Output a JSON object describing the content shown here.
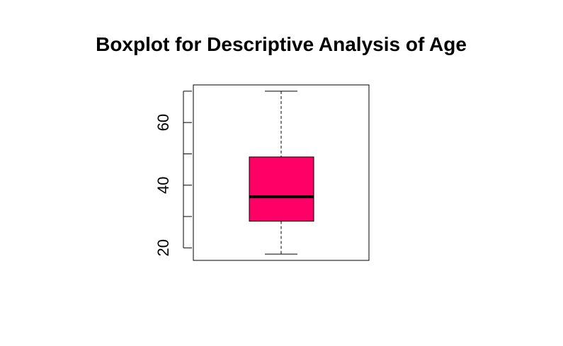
{
  "chart_data": {
    "type": "boxplot",
    "title": "Boxplot for Descriptive Analysis of Age",
    "xlabel": "",
    "ylabel": "",
    "ylim": [
      16,
      72
    ],
    "y_ticks": [
      20,
      30,
      40,
      50,
      60,
      70
    ],
    "y_tick_labels": [
      "20",
      "40",
      "60"
    ],
    "box": {
      "min": 18,
      "q1": 28.5,
      "median": 36.3,
      "q3": 49,
      "max": 70
    },
    "colors": {
      "box_fill": "#ff0066",
      "median": "#000000",
      "whisker": "#000000"
    },
    "grid": false
  }
}
